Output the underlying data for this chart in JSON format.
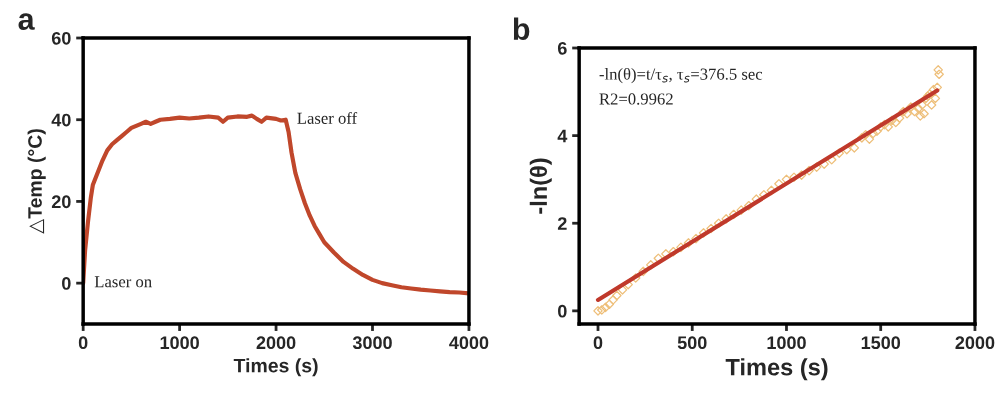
{
  "chart_data": [
    {
      "type": "line",
      "title": "a",
      "xlabel": "Times (s)",
      "ylabel": "△Temp (°C)",
      "xlim": [
        0,
        4000
      ],
      "ylim": [
        -10,
        60
      ],
      "xticks": [
        0,
        1000,
        2000,
        3000,
        4000
      ],
      "yticks": [
        0,
        20,
        40,
        60
      ],
      "grid": false,
      "legend": false,
      "marker": "none",
      "line_style": "solid",
      "annotations": [
        {
          "text": "Laser on",
          "x": 0,
          "y": 0
        },
        {
          "text": "Laser off",
          "x": 2100,
          "y": 40
        }
      ],
      "series": [
        {
          "color": "#c0472b",
          "x": [
            0,
            20,
            50,
            80,
            100,
            150,
            200,
            250,
            300,
            350,
            400,
            450,
            500,
            550,
            600,
            650,
            700,
            750,
            800,
            900,
            1000,
            1100,
            1200,
            1300,
            1400,
            1450,
            1500,
            1600,
            1700,
            1750,
            1800,
            1850,
            1900,
            2000,
            2050,
            2100,
            2130,
            2160,
            2200,
            2250,
            2300,
            2350,
            2400,
            2450,
            2500,
            2600,
            2700,
            2800,
            2900,
            3000,
            3100,
            3200,
            3300,
            3400,
            3500,
            3600,
            3700,
            3800,
            3900,
            4000
          ],
          "values": [
            0,
            8,
            15,
            21,
            24,
            27,
            30,
            32.5,
            34,
            35,
            36,
            37,
            38,
            38.5,
            39,
            39.5,
            39,
            39.5,
            40,
            40.2,
            40.5,
            40.3,
            40.5,
            40.8,
            40.5,
            39.5,
            40.5,
            40.8,
            40.7,
            41,
            40.2,
            39.5,
            40.5,
            40.2,
            39.8,
            40,
            37,
            32,
            27,
            23,
            19.5,
            16.5,
            14,
            12,
            10,
            7.5,
            5.2,
            3.5,
            2,
            0.8,
            0,
            -0.5,
            -1,
            -1.3,
            -1.6,
            -1.8,
            -2,
            -2.2,
            -2.3,
            -2.5
          ]
        }
      ]
    },
    {
      "type": "scatter",
      "title": "b",
      "xlabel": "Times (s)",
      "ylabel": "-ln(θ)",
      "xlim": [
        -100,
        2000
      ],
      "ylim": [
        -0.3,
        6
      ],
      "xticks": [
        0,
        500,
        1000,
        1500,
        2000
      ],
      "yticks": [
        0,
        2,
        4,
        6
      ],
      "grid": false,
      "legend": false,
      "marker": "diamond",
      "annotations": [
        "-ln(θ)=t/τ$_{s}$, τ$_{s}$=376.5 sec",
        "R2=0.9962"
      ],
      "series": [
        {
          "color": "#eebf7a",
          "x": [
            0,
            20,
            40,
            60,
            80,
            100,
            130,
            160,
            200,
            240,
            280,
            320,
            360,
            400,
            440,
            480,
            520,
            560,
            600,
            640,
            680,
            720,
            760,
            800,
            840,
            880,
            920,
            960,
            1000,
            1040,
            1080,
            1120,
            1160,
            1200,
            1240,
            1280,
            1320,
            1360,
            1400,
            1420,
            1440,
            1460,
            1480,
            1500,
            1520,
            1540,
            1560,
            1580,
            1600,
            1620,
            1640,
            1660,
            1680,
            1700,
            1710,
            1720,
            1730,
            1740,
            1750,
            1760,
            1770,
            1780,
            1790,
            1800,
            1805,
            1810
          ],
          "values": [
            0,
            0.02,
            0.08,
            0.15,
            0.25,
            0.35,
            0.48,
            0.6,
            0.75,
            0.9,
            1.05,
            1.2,
            1.3,
            1.35,
            1.45,
            1.55,
            1.65,
            1.78,
            1.88,
            2.0,
            2.1,
            2.2,
            2.3,
            2.4,
            2.55,
            2.65,
            2.75,
            2.9,
            3.0,
            3.05,
            3.1,
            3.2,
            3.28,
            3.35,
            3.45,
            3.6,
            3.68,
            3.72,
            3.95,
            4.02,
            3.92,
            4.05,
            4.1,
            4.2,
            4.25,
            4.2,
            4.35,
            4.3,
            4.4,
            4.55,
            4.5,
            4.65,
            4.55,
            4.62,
            4.45,
            4.7,
            4.5,
            4.85,
            4.9,
            4.95,
            4.7,
            5.05,
            4.85,
            5.1,
            5.5,
            5.4
          ]
        },
        {
          "type": "line",
          "color": "#c0392b",
          "marker": "none",
          "x": [
            0,
            1800
          ],
          "values": [
            0.25,
            5.03
          ]
        }
      ]
    }
  ]
}
